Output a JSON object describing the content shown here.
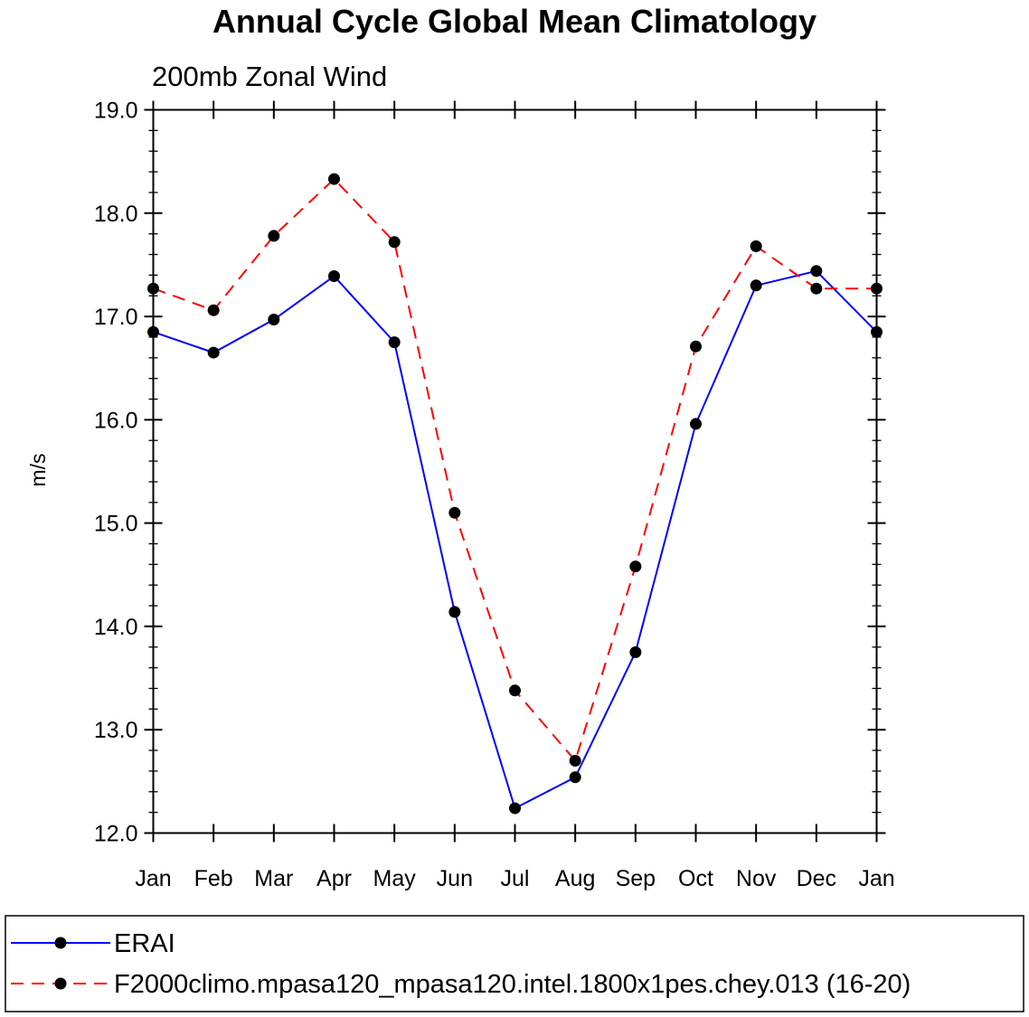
{
  "chart_data": {
    "type": "line",
    "title": "Annual Cycle Global Mean Climatology",
    "subtitle": "200mb Zonal Wind",
    "ylabel": "m/s",
    "xlabel": "",
    "categories": [
      "Jan",
      "Feb",
      "Mar",
      "Apr",
      "May",
      "Jun",
      "Jul",
      "Aug",
      "Sep",
      "Oct",
      "Nov",
      "Dec",
      "Jan"
    ],
    "ylim": [
      12.0,
      19.0
    ],
    "yticks": [
      "12.0",
      "13.0",
      "14.0",
      "15.0",
      "16.0",
      "17.0",
      "18.0",
      "19.0"
    ],
    "grid": false,
    "legend_position": "bottom",
    "series": [
      {
        "name": "ERAI",
        "color": "#0000ff",
        "dash": "solid",
        "values": [
          16.85,
          16.65,
          16.97,
          17.39,
          16.75,
          14.14,
          12.24,
          12.54,
          13.75,
          15.96,
          17.3,
          17.44,
          16.85
        ]
      },
      {
        "name": "F2000climo.mpasa120_mpasa120.intel.1800x1pes.chey.013 (16-20)",
        "color": "#ff0000",
        "dash": "dashed",
        "values": [
          17.27,
          17.06,
          17.78,
          18.33,
          17.72,
          15.1,
          13.38,
          12.7,
          14.58,
          16.71,
          17.68,
          17.27,
          17.27
        ]
      }
    ]
  }
}
